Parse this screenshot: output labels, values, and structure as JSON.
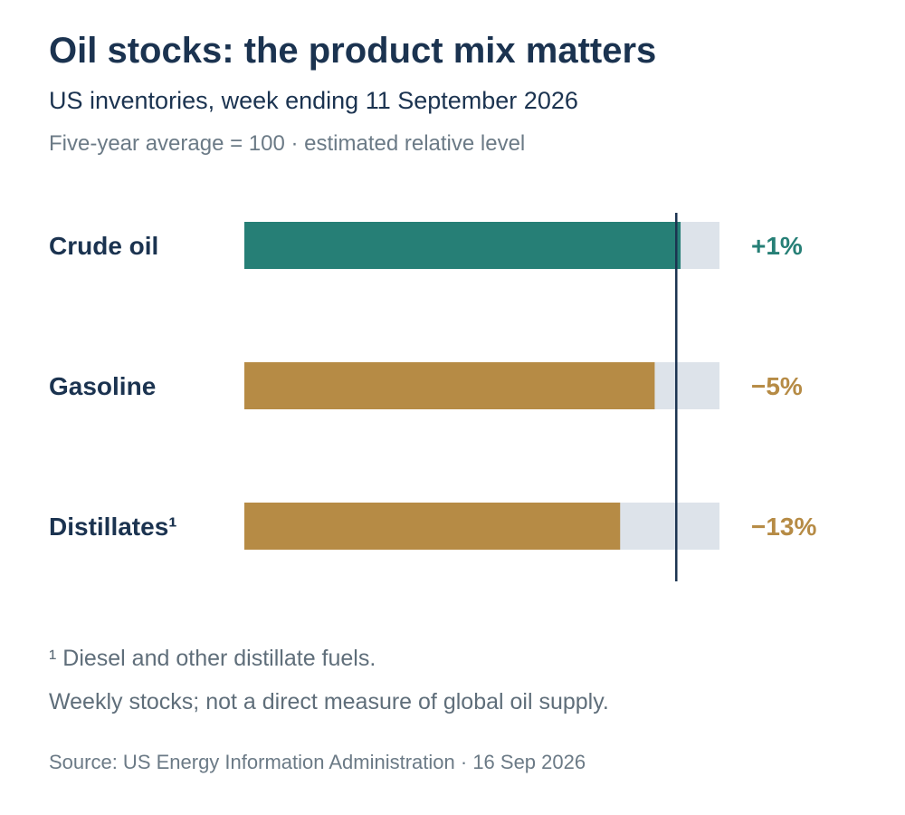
{
  "header": {
    "title": "Oil stocks: the product mix matters",
    "subtitle": "US inventories, week ending 11 September 2026",
    "note": "Five-year average = 100 · estimated relative level"
  },
  "colors": {
    "crude": "#267f76",
    "product": "#b68b45",
    "track": "#dde3ea",
    "reference_line": "#1b3350",
    "label": "#1b3350"
  },
  "chart_data": {
    "type": "bar",
    "orientation": "horizontal",
    "categories": [
      "Crude oil",
      "Gasoline",
      "Distillates¹"
    ],
    "values": [
      101,
      95,
      87
    ],
    "value_labels": [
      "+1%",
      "−5%",
      "−13%"
    ],
    "reference_value": 100,
    "xlim": [
      0,
      110
    ],
    "grid": false
  },
  "footer": {
    "footnote": "¹ Diesel and other distillate fuels.",
    "caveat": "Weekly stocks; not a direct measure of global oil supply.",
    "source": "Source: US Energy Information Administration · 16 Sep 2026"
  }
}
